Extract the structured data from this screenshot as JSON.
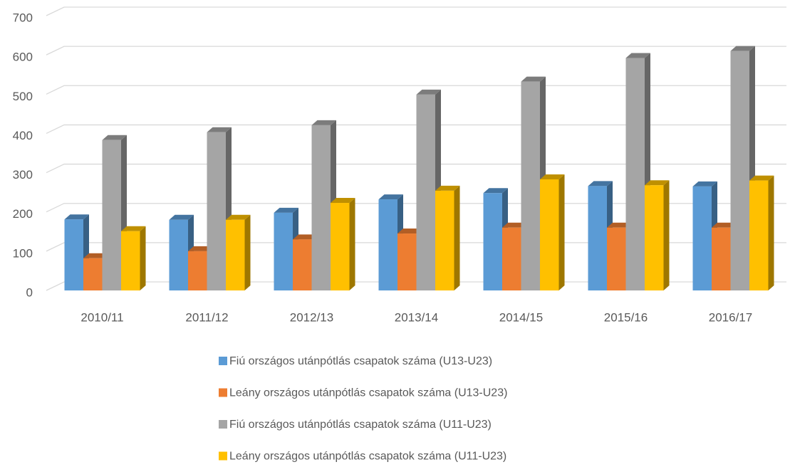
{
  "chart_data": {
    "type": "bar3d",
    "categories": [
      "2010/11",
      "2011/12",
      "2012/13",
      "2013/14",
      "2014/15",
      "2015/16",
      "2016/17"
    ],
    "series": [
      {
        "name": "Fiú országos utánpótlás csapatok száma (U13-U23)",
        "color": "#5b9bd5",
        "values": [
          181,
          180,
          198,
          232,
          248,
          266,
          265
        ]
      },
      {
        "name": "Leány országos utánpótlás csapatok száma (U13-U23)",
        "color": "#ed7d31",
        "values": [
          82,
          100,
          130,
          145,
          160,
          160,
          160
        ]
      },
      {
        "name": "Fiú országos utánpótlás csapatok száma (U11-U23)",
        "color": "#a5a5a5",
        "values": [
          383,
          403,
          421,
          499,
          532,
          592,
          610
        ]
      },
      {
        "name": "Leány országos utánpótlás csapatok száma (U11-U23)",
        "color": "#ffc000",
        "values": [
          151,
          180,
          223,
          254,
          283,
          268,
          280
        ]
      }
    ],
    "ylim": [
      0,
      700
    ],
    "yticks": [
      0,
      100,
      200,
      300,
      400,
      500,
      600,
      700
    ],
    "grid": true,
    "legend": "bottom"
  }
}
